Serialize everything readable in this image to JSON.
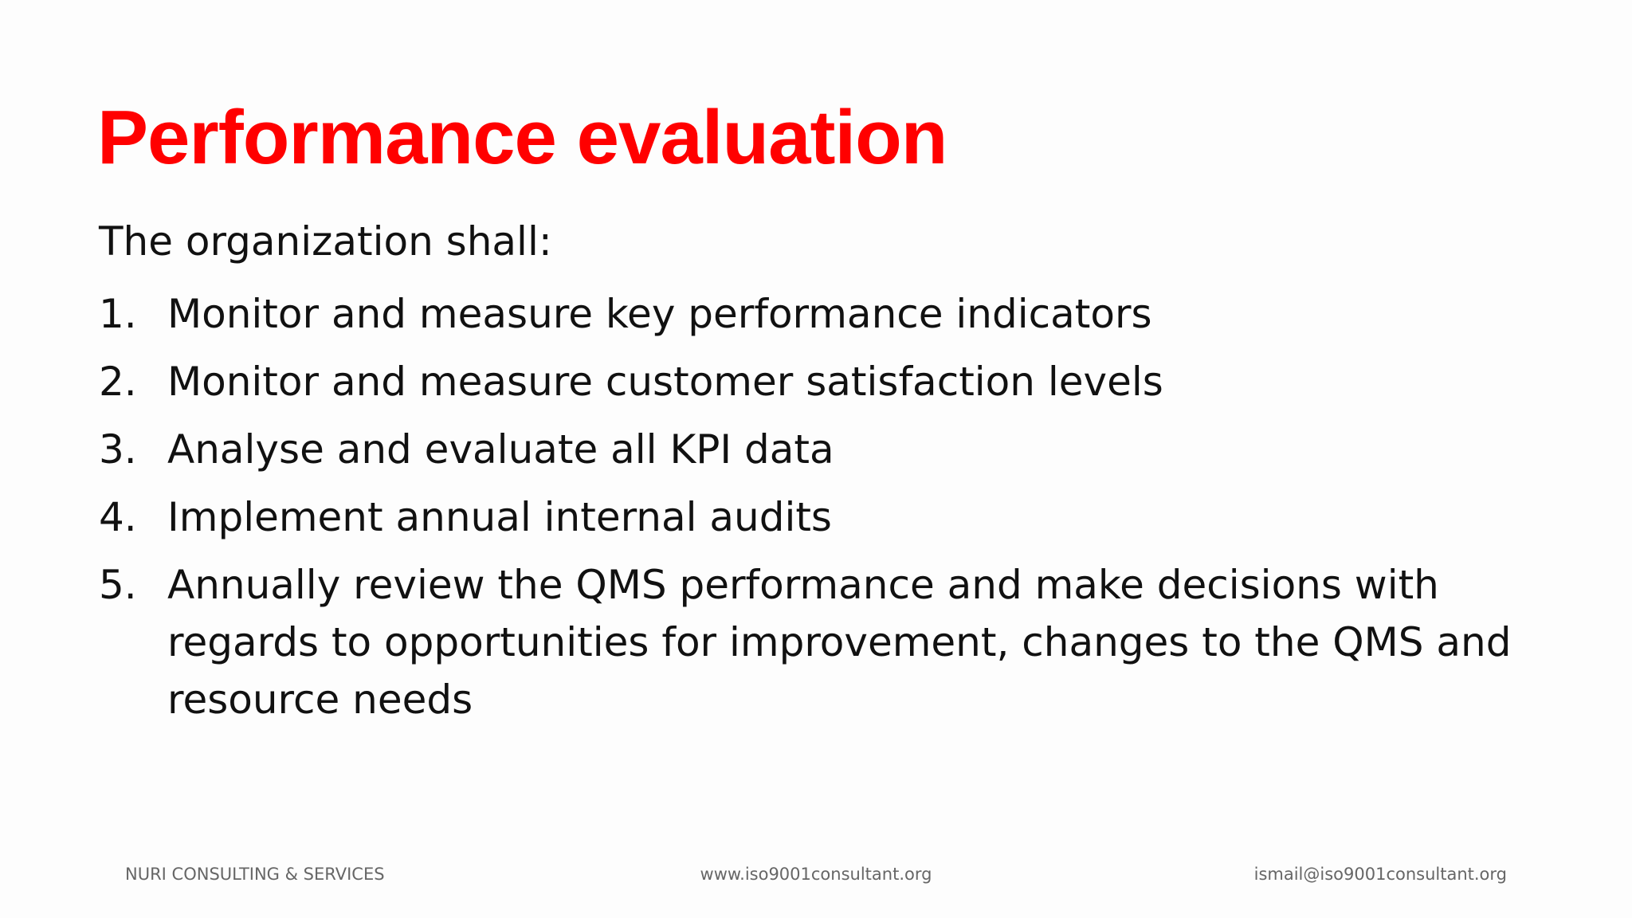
{
  "header": {
    "title": "Performance evaluation"
  },
  "intro": "The organization shall:",
  "list": [
    {
      "number": "1.",
      "text": "Monitor and measure key performance indicators"
    },
    {
      "number": "2.",
      "text": "Monitor and measure customer satisfaction levels"
    },
    {
      "number": "3.",
      "text": "Analyse and evaluate all KPI data"
    },
    {
      "number": "4.",
      "text": "Implement annual internal audits"
    },
    {
      "number": "5.",
      "text": "Annually review the QMS performance and make decisions with regards to opportunities for improvement, changes to the QMS and resource needs"
    }
  ],
  "footer": {
    "left": "NURI CONSULTING & SERVICES",
    "center": "www.iso9001consultant.org",
    "right": "ismail@iso9001consultant.org"
  }
}
